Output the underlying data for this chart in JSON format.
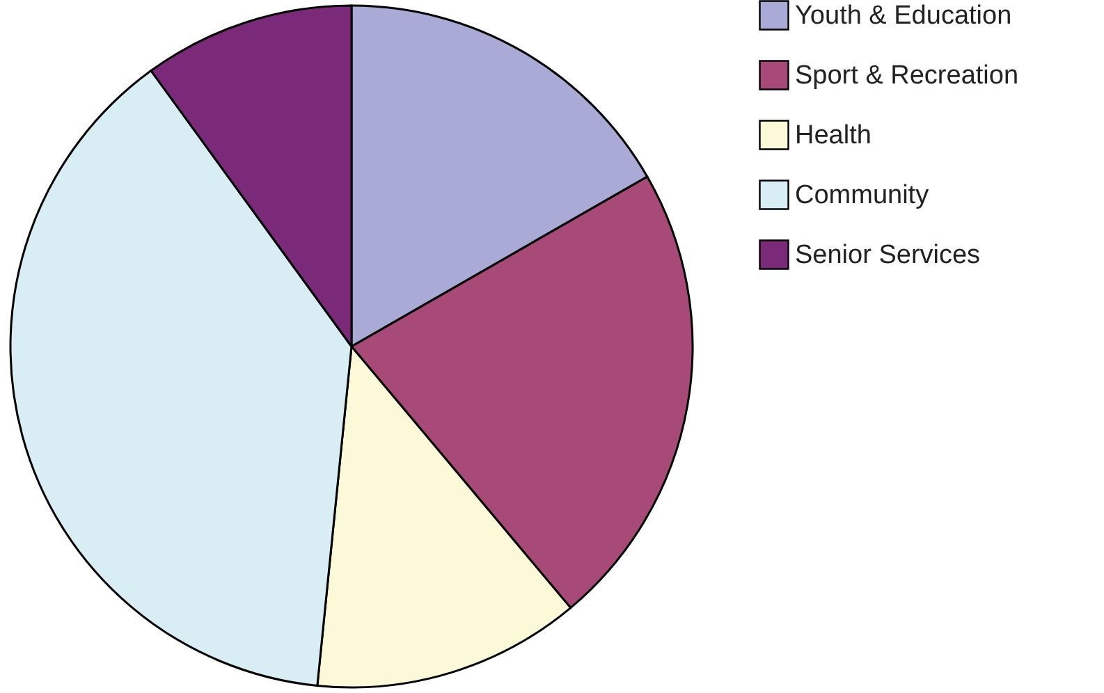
{
  "chart_data": {
    "type": "pie",
    "categories": [
      "Youth & Education",
      "Sport & Recreation",
      "Health",
      "Community",
      "Senior Services"
    ],
    "values": [
      16.7,
      22.2,
      12.7,
      38.4,
      10.0
    ],
    "colors": [
      "#aaaad6",
      "#a84a78",
      "#fcf9d8",
      "#d9eef4",
      "#7a2a78"
    ],
    "legend": "right"
  }
}
